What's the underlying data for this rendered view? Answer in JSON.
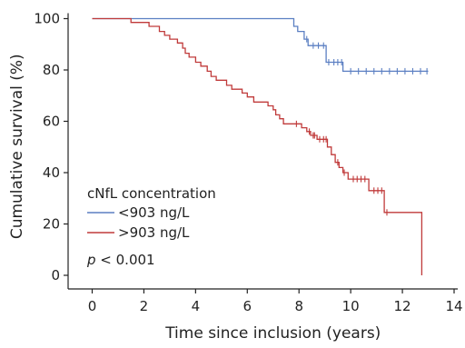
{
  "chart_data": {
    "type": "line",
    "xlabel": "Time since inclusion (years)",
    "ylabel": "Cumulative survival (%)",
    "xlim": [
      0,
      14
    ],
    "ylim": [
      0,
      100
    ],
    "xticks": [
      0,
      2,
      4,
      6,
      8,
      10,
      12,
      14
    ],
    "yticks": [
      0,
      20,
      40,
      60,
      80,
      100
    ],
    "legend_title": "cNfL concentration",
    "annotation": {
      "italic": "p",
      "rest": " < 0.001"
    },
    "series": [
      {
        "name": "<903 ng/L",
        "color": "#5b7fc2",
        "steps": [
          [
            0,
            100
          ],
          [
            7.8,
            100
          ],
          [
            7.8,
            97
          ],
          [
            7.95,
            97
          ],
          [
            7.95,
            95
          ],
          [
            8.2,
            95
          ],
          [
            8.2,
            92
          ],
          [
            8.35,
            92
          ],
          [
            8.35,
            89.5
          ],
          [
            9.05,
            89.5
          ],
          [
            9.05,
            83
          ],
          [
            9.7,
            83
          ],
          [
            9.7,
            79.5
          ],
          [
            13,
            79.5
          ]
        ],
        "censors": [
          [
            8.3,
            92
          ],
          [
            8.55,
            89.5
          ],
          [
            8.75,
            89.5
          ],
          [
            8.95,
            89.5
          ],
          [
            9.15,
            83
          ],
          [
            9.35,
            83
          ],
          [
            9.5,
            83
          ],
          [
            9.65,
            83
          ],
          [
            10.0,
            79.5
          ],
          [
            10.3,
            79.5
          ],
          [
            10.6,
            79.5
          ],
          [
            10.9,
            79.5
          ],
          [
            11.2,
            79.5
          ],
          [
            11.5,
            79.5
          ],
          [
            11.8,
            79.5
          ],
          [
            12.1,
            79.5
          ],
          [
            12.4,
            79.5
          ],
          [
            12.7,
            79.5
          ],
          [
            12.95,
            79.5
          ]
        ]
      },
      {
        "name": ">903 ng/L",
        "color": "#c03a3a",
        "steps": [
          [
            0,
            100
          ],
          [
            1.5,
            100
          ],
          [
            1.5,
            98.5
          ],
          [
            2.2,
            98.5
          ],
          [
            2.2,
            97
          ],
          [
            2.6,
            97
          ],
          [
            2.6,
            95
          ],
          [
            2.8,
            95
          ],
          [
            2.8,
            93.5
          ],
          [
            3.0,
            93.5
          ],
          [
            3.0,
            92
          ],
          [
            3.3,
            92
          ],
          [
            3.3,
            90.5
          ],
          [
            3.5,
            90.5
          ],
          [
            3.5,
            88.5
          ],
          [
            3.6,
            88.5
          ],
          [
            3.6,
            86.5
          ],
          [
            3.75,
            86.5
          ],
          [
            3.75,
            85
          ],
          [
            4.0,
            85
          ],
          [
            4.0,
            83
          ],
          [
            4.2,
            83
          ],
          [
            4.2,
            81.5
          ],
          [
            4.45,
            81.5
          ],
          [
            4.45,
            79.5
          ],
          [
            4.6,
            79.5
          ],
          [
            4.6,
            77.5
          ],
          [
            4.8,
            77.5
          ],
          [
            4.8,
            76
          ],
          [
            5.2,
            76
          ],
          [
            5.2,
            74
          ],
          [
            5.4,
            74
          ],
          [
            5.4,
            72.5
          ],
          [
            5.8,
            72.5
          ],
          [
            5.8,
            71
          ],
          [
            6.0,
            71
          ],
          [
            6.0,
            69.5
          ],
          [
            6.25,
            69.5
          ],
          [
            6.25,
            67.5
          ],
          [
            6.8,
            67.5
          ],
          [
            6.8,
            66
          ],
          [
            7.0,
            66
          ],
          [
            7.0,
            64.5
          ],
          [
            7.1,
            64.5
          ],
          [
            7.1,
            62.5
          ],
          [
            7.25,
            62.5
          ],
          [
            7.25,
            61
          ],
          [
            7.4,
            61
          ],
          [
            7.4,
            59
          ],
          [
            8.1,
            59
          ],
          [
            8.1,
            57.5
          ],
          [
            8.3,
            57.5
          ],
          [
            8.3,
            56
          ],
          [
            8.45,
            56
          ],
          [
            8.45,
            54.5
          ],
          [
            8.7,
            54.5
          ],
          [
            8.7,
            53
          ],
          [
            9.1,
            53
          ],
          [
            9.1,
            50
          ],
          [
            9.25,
            50
          ],
          [
            9.25,
            47
          ],
          [
            9.4,
            47
          ],
          [
            9.4,
            44
          ],
          [
            9.55,
            44
          ],
          [
            9.55,
            42
          ],
          [
            9.7,
            42
          ],
          [
            9.7,
            40
          ],
          [
            9.9,
            40
          ],
          [
            9.9,
            37.5
          ],
          [
            10.7,
            37.5
          ],
          [
            10.7,
            33
          ],
          [
            11.3,
            33
          ],
          [
            11.3,
            24.5
          ],
          [
            12.75,
            24.5
          ],
          [
            12.75,
            0
          ]
        ],
        "censors": [
          [
            7.9,
            59
          ],
          [
            8.4,
            56
          ],
          [
            8.55,
            54.5
          ],
          [
            8.6,
            54.5
          ],
          [
            8.8,
            53
          ],
          [
            8.95,
            53
          ],
          [
            9.05,
            53
          ],
          [
            9.5,
            44
          ],
          [
            9.75,
            40
          ],
          [
            10.1,
            37.5
          ],
          [
            10.25,
            37.5
          ],
          [
            10.4,
            37.5
          ],
          [
            10.55,
            37.5
          ],
          [
            10.9,
            33
          ],
          [
            11.05,
            33
          ],
          [
            11.2,
            33
          ],
          [
            11.4,
            24.5
          ]
        ]
      }
    ]
  }
}
